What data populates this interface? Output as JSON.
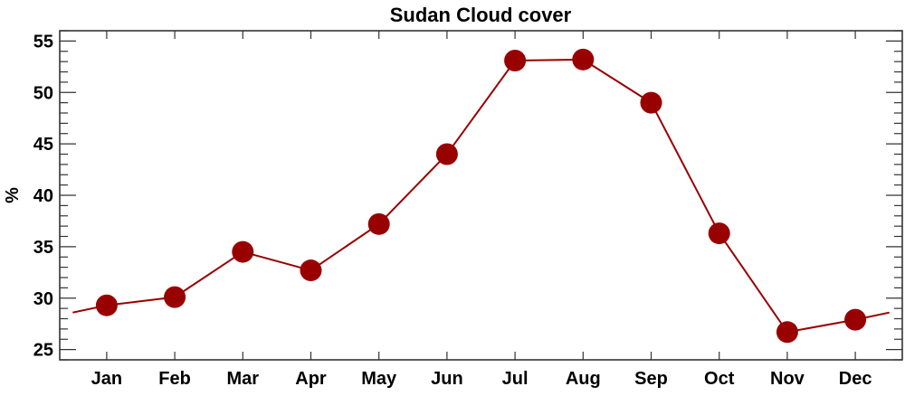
{
  "chart_data": {
    "type": "line",
    "title": "Sudan Cloud cover",
    "xlabel": "",
    "ylabel": "%",
    "categories": [
      "Jan",
      "Feb",
      "Mar",
      "Apr",
      "May",
      "Jun",
      "Jul",
      "Aug",
      "Sep",
      "Oct",
      "Nov",
      "Dec"
    ],
    "values": [
      29.3,
      30.1,
      34.5,
      32.7,
      37.2,
      44.0,
      53.1,
      53.2,
      49.0,
      36.3,
      26.7,
      27.9
    ],
    "ylim": [
      24,
      56
    ],
    "yticks": [
      25,
      30,
      35,
      40,
      45,
      50,
      55
    ],
    "grid": false,
    "line_wraps_cyclically": true,
    "colors": {
      "series": "#990000",
      "axes": "#333333"
    }
  }
}
